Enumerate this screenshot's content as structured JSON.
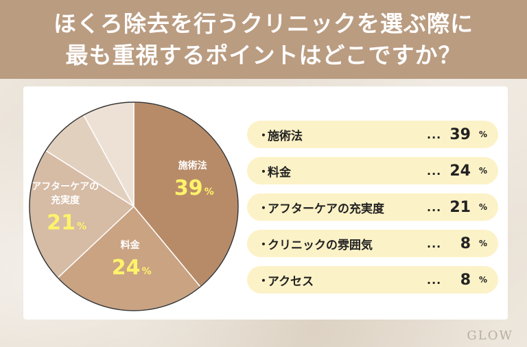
{
  "header": {
    "line1": "ほくろ除去を行うクリニックを選ぶ際に",
    "line2": "最も重視するポイントはどこですか？"
  },
  "colors": {
    "header_bg": "#ba9c81",
    "slice_1": "#b88b68",
    "slice_2": "#caa383",
    "slice_3": "#d6bba5",
    "slice_4": "#e2d0bf",
    "slice_5": "#ede1d6",
    "value_label": "#fff36a",
    "legend_row_bg": "#fcf2c7"
  },
  "chart_data": {
    "type": "pie",
    "unit": "%",
    "slices": [
      {
        "name": "施術法",
        "value": 39
      },
      {
        "name": "料金",
        "value": 24
      },
      {
        "name": "アフターケアの充実度",
        "value": 21
      },
      {
        "name": "クリニックの雰囲気",
        "value": 8
      },
      {
        "name": "アクセス",
        "value": 8
      }
    ],
    "slice_labels": [
      {
        "lines": [
          "施術法"
        ],
        "value": "39",
        "unit": "%"
      },
      {
        "lines": [
          "料金"
        ],
        "value": "24",
        "unit": "%"
      },
      {
        "lines": [
          "アフターケアの",
          "充実度"
        ],
        "value": "21",
        "unit": "%"
      }
    ],
    "legend": [
      {
        "bullet": "・",
        "label": "施術法",
        "dots": "...",
        "value": "39",
        "unit": "%"
      },
      {
        "bullet": "・",
        "label": "料金",
        "dots": "...",
        "value": "24",
        "unit": "%"
      },
      {
        "bullet": "・",
        "label": "アフターケアの充実度",
        "dots": "...",
        "value": "21",
        "unit": "%"
      },
      {
        "bullet": "・",
        "label": "クリニックの雰囲気",
        "dots": "...",
        "value": "8",
        "unit": "%"
      },
      {
        "bullet": "・",
        "label": "アクセス",
        "dots": "...",
        "value": "8",
        "unit": "%"
      }
    ]
  },
  "logo": {
    "text": "GLOW"
  }
}
